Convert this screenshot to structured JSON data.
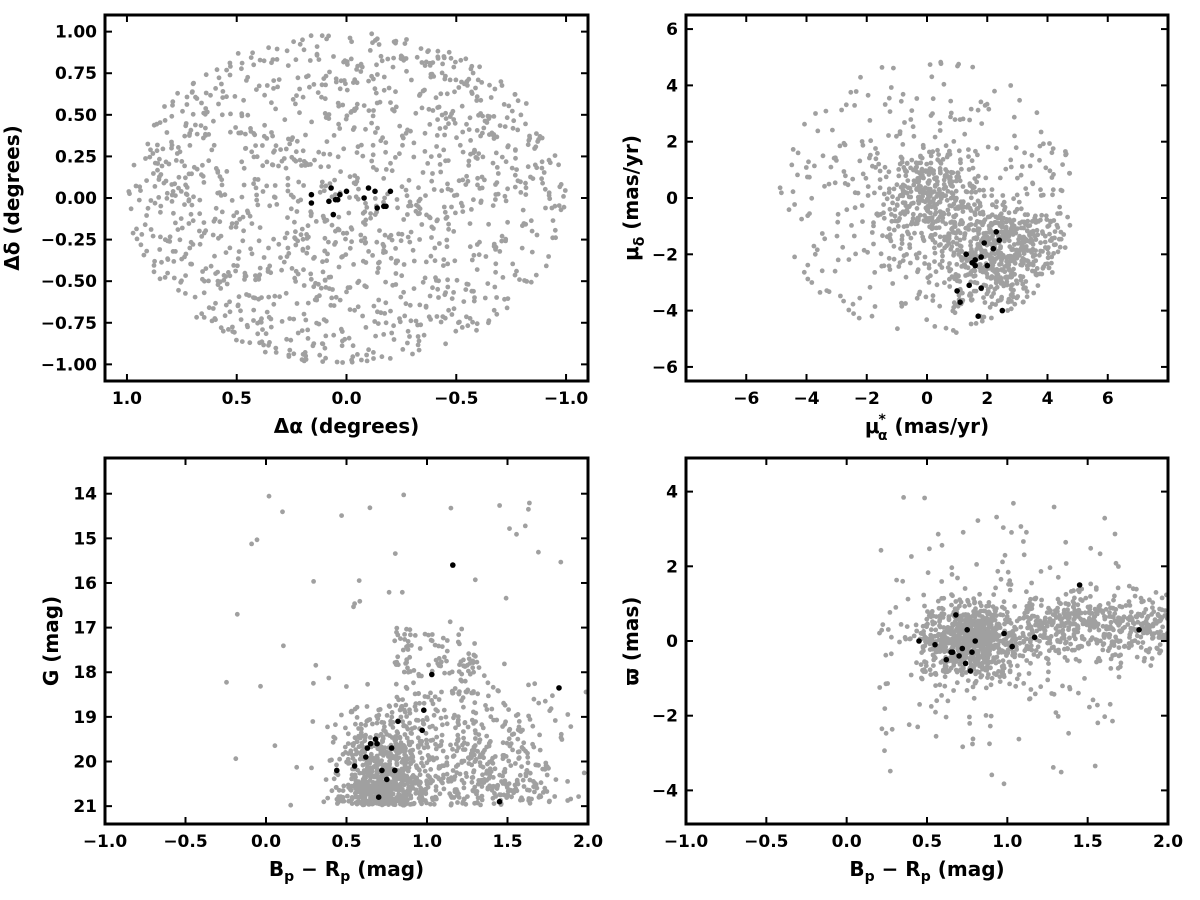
{
  "colors": {
    "field": "#a0a0a0",
    "member": "#000000",
    "frame": "#000000"
  },
  "chart_data": [
    {
      "type": "scatter",
      "id": "sky",
      "xlabel": "Δα (degrees)",
      "ylabel": "Δδ (degrees)",
      "xlim": [
        1.1,
        -1.1
      ],
      "ylim": [
        -1.1,
        1.1
      ],
      "xticks": [
        1.0,
        0.5,
        0.0,
        -0.5,
        -1.0
      ],
      "xtick_labels": [
        "1.0",
        "0.5",
        "0.0",
        "−0.5",
        "−1.0"
      ],
      "yticks": [
        -1.0,
        -0.75,
        -0.5,
        -0.25,
        0.0,
        0.25,
        0.5,
        0.75,
        1.0
      ],
      "ytick_labels": [
        "−1.00",
        "−0.75",
        "−0.50",
        "−0.25",
        "0.00",
        "0.25",
        "0.50",
        "0.75",
        "1.00"
      ],
      "field": {
        "n": 1300,
        "x_center": 0.0,
        "y_center": 0.0,
        "x_radius": 1.0,
        "y_radius": 1.0
      },
      "members": {
        "x": [
          -0.17,
          -0.13,
          0.16,
          0.07,
          0.05,
          0.0,
          -0.08,
          -0.1,
          0.16,
          0.03,
          0.04,
          0.08,
          -0.14,
          -0.18,
          -0.2,
          0.06
        ],
        "y": [
          -0.05,
          0.04,
          -0.03,
          0.06,
          -0.01,
          0.04,
          0.0,
          0.06,
          0.02,
          0.02,
          -0.01,
          -0.02,
          -0.06,
          -0.05,
          0.04,
          -0.1
        ]
      }
    },
    {
      "type": "scatter",
      "id": "pm",
      "xlabel": "μ*α (mas/yr)",
      "xlabel_main": "μ",
      "xlabel_sup": "*",
      "xlabel_sub": "α",
      "xlabel_rest": " (mas/yr)",
      "ylabel": "μδ (mas/yr)",
      "ylabel_main": "μ",
      "ylabel_sub": "δ",
      "ylabel_rest": " (mas/yr)",
      "xlim": [
        -8,
        8
      ],
      "ylim": [
        -6.5,
        6.5
      ],
      "xticks": [
        -6,
        -4,
        -2,
        0,
        2,
        4,
        6
      ],
      "xtick_labels": [
        "−6",
        "−4",
        "−2",
        "0",
        "2",
        "4",
        "6"
      ],
      "yticks": [
        -6,
        -4,
        -2,
        0,
        2,
        4,
        6
      ],
      "ytick_labels": [
        "−6",
        "−4",
        "−2",
        "0",
        "2",
        "4",
        "6"
      ],
      "field": {
        "n": 1300,
        "x_center": 0.0,
        "y_center": 0.0,
        "x_radius": 4.9,
        "y_radius": 4.9
      },
      "members": {
        "x": [
          1.3,
          1.5,
          1.6,
          1.8,
          1.9,
          2.0,
          2.3,
          2.4,
          1.0,
          1.1,
          1.4,
          1.6,
          1.7,
          2.2,
          2.5,
          1.8
        ],
        "y": [
          -2.0,
          -2.3,
          -2.4,
          -2.1,
          -1.6,
          -2.4,
          -1.2,
          -1.5,
          -3.3,
          -3.7,
          -3.1,
          -2.2,
          -4.2,
          -1.8,
          -4.0,
          -3.2
        ]
      }
    },
    {
      "type": "scatter",
      "id": "cmd",
      "xlabel": "Bp − Rp (mag)",
      "xlabel_parts": [
        "B",
        "p",
        " − R",
        "p",
        " (mag)"
      ],
      "ylabel": "G (mag)",
      "xlim": [
        -1.0,
        2.0
      ],
      "ylim": [
        21.4,
        13.2
      ],
      "xticks": [
        -1.0,
        -0.5,
        0.0,
        0.5,
        1.0,
        1.5,
        2.0
      ],
      "xtick_labels": [
        "−1.0",
        "−0.5",
        "0.0",
        "0.5",
        "1.0",
        "1.5",
        "2.0"
      ],
      "yticks": [
        14,
        15,
        16,
        17,
        18,
        19,
        20,
        21
      ],
      "ytick_labels": [
        "14",
        "15",
        "16",
        "17",
        "18",
        "19",
        "20",
        "21"
      ],
      "field": {
        "n": 1350
      },
      "members": {
        "x": [
          0.44,
          0.55,
          0.62,
          0.65,
          0.68,
          0.7,
          0.72,
          0.75,
          0.78,
          0.8,
          0.82,
          0.63,
          0.69,
          0.97,
          0.98,
          1.03,
          1.16,
          1.45,
          1.82
        ],
        "y": [
          20.2,
          20.1,
          19.9,
          19.6,
          19.5,
          20.8,
          20.2,
          20.4,
          19.7,
          20.2,
          19.1,
          19.7,
          19.6,
          19.3,
          18.85,
          18.05,
          15.6,
          20.9,
          18.35
        ]
      }
    },
    {
      "type": "scatter",
      "id": "parallax",
      "xlabel": "Bp − Rp (mag)",
      "xlabel_parts": [
        "B",
        "p",
        " − R",
        "p",
        " (mag)"
      ],
      "ylabel": "ϖ (mas)",
      "xlim": [
        -1.0,
        2.0
      ],
      "ylim": [
        -4.9,
        4.9
      ],
      "xticks": [
        -1.0,
        -0.5,
        0.0,
        0.5,
        1.0,
        1.5,
        2.0
      ],
      "xtick_labels": [
        "−1.0",
        "−0.5",
        "0.0",
        "0.5",
        "1.0",
        "1.5",
        "2.0"
      ],
      "yticks": [
        -4,
        -2,
        0,
        2,
        4
      ],
      "ytick_labels": [
        "−4",
        "−2",
        "0",
        "2",
        "4"
      ],
      "field": {
        "n": 1400
      },
      "members": {
        "x": [
          0.45,
          0.55,
          0.62,
          0.65,
          0.68,
          0.7,
          0.72,
          0.75,
          0.78,
          0.8,
          0.66,
          0.74,
          0.77,
          0.98,
          1.03,
          1.17,
          1.45,
          1.82
        ],
        "y": [
          0.0,
          -0.1,
          -0.5,
          -0.3,
          0.7,
          -0.4,
          -0.2,
          0.3,
          -0.3,
          0.0,
          -0.3,
          -0.6,
          -0.8,
          0.2,
          -0.15,
          0.1,
          1.5,
          0.3
        ]
      }
    }
  ]
}
